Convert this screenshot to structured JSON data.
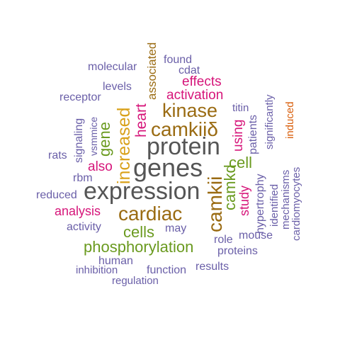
{
  "colors": {
    "gray": "#555555",
    "brown": "#9a6b12",
    "olive": "#6a9a1f",
    "magenta": "#d6157a",
    "purple": "#6a5fa8",
    "gold": "#d9a11a",
    "orange": "#d9600e"
  },
  "words": {
    "protein": "protein",
    "genes": "genes",
    "expression": "expression",
    "camkii": "camkii",
    "camkiid": "camkiiδ",
    "kinase": "kinase",
    "cardiac": "cardiac",
    "increased": "increased",
    "phosphorylation": "phosphorylation",
    "cells": "cells",
    "gene": "gene",
    "heart": "heart",
    "associated": "associated",
    "effects": "effects",
    "activation": "activation",
    "using": "using",
    "cell": "cell",
    "camkd": "camkd",
    "study": "study",
    "also": "also",
    "analysis": "analysis",
    "may": "may",
    "molecular": "molecular",
    "found": "found",
    "cdat": "cdat",
    "levels": "levels",
    "receptor": "receptor",
    "titin": "titin",
    "patients": "patients",
    "significantly": "significantly",
    "induced": "induced",
    "signaling": "signaling",
    "vsmmice": "vsmmice",
    "rats": "rats",
    "rbm": "rbm",
    "reduced": "reduced",
    "hypertrophy": "hypertrophy",
    "identified": "identified",
    "mechanisms": "mechanisms",
    "cardiomyocytes": "cardiomyocytes",
    "activity": "activity",
    "role": "role",
    "mouse": "mouse",
    "proteins": "proteins",
    "human": "human",
    "results": "results",
    "inhibition": "inhibition",
    "function": "function",
    "regulation": "regulation"
  }
}
